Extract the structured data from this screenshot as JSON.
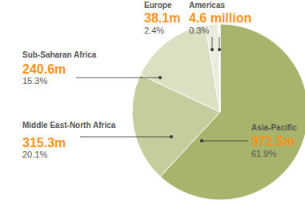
{
  "chart_data": {
    "type": "pie",
    "categories": [
      "Asia-Pacific",
      "Middle East-North Africa",
      "Sub-Saharan Africa",
      "Europe",
      "Americas"
    ],
    "values": [
      972.5,
      315.3,
      240.6,
      38.1,
      4.6
    ],
    "value_labels": [
      "972.5m",
      "315.3m",
      "240.6m",
      "38.1m",
      "4.6 million"
    ],
    "percent_labels": [
      "61.9%",
      "20.1%",
      "15.3%",
      "2.4%",
      "0.3%"
    ],
    "colors": [
      "#a9b36b",
      "#c6cc9c",
      "#dcdfc2",
      "#ebecdd",
      "#f3f3ea"
    ],
    "data_labels": true
  }
}
